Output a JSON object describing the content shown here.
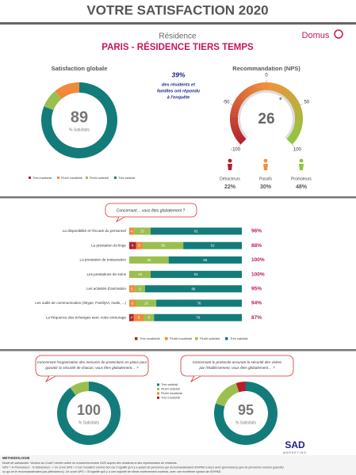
{
  "header": {
    "title": "VOTRE SATISFACTION 2020",
    "subtitle": "Résidence",
    "residence": "PARIS - RÉSIDENCE TIERS TEMPS",
    "logo": "Domus"
  },
  "response": {
    "rate": "39%",
    "lines": [
      "des résidents et",
      "familles ont répondu",
      "à l'enquête"
    ]
  },
  "chart_data": [
    {
      "type": "pie",
      "title": "Satisfaction globale",
      "center_value": 89,
      "center_label": "% Satisfaits",
      "categories": [
        "Très insatisfait",
        "Plutôt insatisfait",
        "Plutôt satisfait",
        "Très satisfait"
      ],
      "values": [
        0,
        11,
        8,
        81
      ],
      "colors": [
        "#b5202e",
        "#ee8a3a",
        "#9bbf4f",
        "#137c7a"
      ],
      "legend": "bottom"
    },
    {
      "type": "gauge",
      "title": "Recommandation (NPS)",
      "value": 26,
      "ylim": [
        -100,
        100
      ],
      "yticks": [
        -100,
        -50,
        0,
        50,
        100
      ],
      "categories": [
        "Détracteurs",
        "Passifs",
        "Promoteurs"
      ],
      "values": [
        22,
        30,
        48
      ],
      "value_labels": [
        "22%",
        "30%",
        "48%"
      ],
      "colors": [
        "#b11f2b",
        "#f0913a",
        "#8cc63f"
      ]
    },
    {
      "type": "stacked-bar",
      "question": "Concernant… vous êtes globalement ?",
      "categories": [
        "La disponibilité et l'écoute du personnel",
        "La prestation du linge",
        "La prestation de restauration",
        "Les prestations de soins",
        "Les activités d'animation",
        "Les outils de communication (Skype, FamilyVi, mails, ...)",
        "La fréquence des échanges avec votre entourage"
      ],
      "series": [
        {
          "name": "Très insatisfait",
          "color": "#b5202e",
          "values": [
            0,
            6,
            0,
            0,
            0,
            0,
            4
          ]
        },
        {
          "name": "Plutôt insatisfait",
          "color": "#ee8a3a",
          "values": [
            4,
            6,
            0,
            0,
            5,
            6,
            9
          ]
        },
        {
          "name": "Plutôt satisfait",
          "color": "#9bbf4f",
          "values": [
            15,
            36,
            35,
            19,
            9,
            18,
            9
          ]
        },
        {
          "name": "Très satisfait",
          "color": "#137c7a",
          "values": [
            81,
            52,
            65,
            81,
            86,
            76,
            78
          ]
        }
      ],
      "xlim": [
        0,
        100
      ],
      "totals": {
        "values": [
          96,
          88,
          100,
          100,
          95,
          94,
          87
        ],
        "value_labels": [
          "96%",
          "88%",
          "100%",
          "100%",
          "95%",
          "94%",
          "87%"
        ]
      }
    },
    {
      "type": "pie",
      "question": [
        "Concernant l'organisation des mesures de protections en place pour",
        "garantir la sécurité de chacun, vous êtes globalement… ?"
      ],
      "center_value": 100,
      "center_label": "% Satisfaits",
      "categories": [
        "Très insatisfait",
        "Plutôt insatisfait",
        "Plutôt satisfait",
        "Très satisfait"
      ],
      "values": [
        0,
        0,
        10,
        90
      ],
      "colors": [
        "#b5202e",
        "#ee8a3a",
        "#9bbf4f",
        "#137c7a"
      ],
      "legend": "right"
    },
    {
      "type": "pie",
      "question": [
        "Concernant le protocole assurant la sécurité des visites",
        "par l'établissement, vous êtes globalement… ?"
      ],
      "center_value": 95,
      "center_label": "% Satisfaits",
      "categories": [
        "Très insatisfait",
        "Plutôt insatisfait",
        "Plutôt satisfait",
        "Très satisfait"
      ],
      "values": [
        5,
        0,
        15,
        80
      ],
      "colors": [
        "#b5202e",
        "#ee8a3a",
        "#9bbf4f",
        "#137c7a"
      ]
    }
  ],
  "agency": {
    "name": "SAD",
    "tagline": "MARKETING"
  },
  "methodology": {
    "title": "METHODOLOGIE",
    "lines": [
      "Etude de satisfaction \"Gestion du Covid\" menée online en octobre/novembre 2020 auprès des résidents et des représentants de résidents.",
      "NPS = % Promoteurs - % Détracteurs -> Un score NPS > 0 est considéré comme bon car il signifie qu'il y a autant de personnes qui recommanderaient l'EHPAD à leurs amis (promoteurs) que de personnes neutres (passifs)",
      "ou qui ne le recommanderaient pas (détracteurs). Un score NPS > 30 signifie qu'il y a une majorité de clients extrêmement contents, avec une excellente opinion de l'EHPAD."
    ]
  }
}
